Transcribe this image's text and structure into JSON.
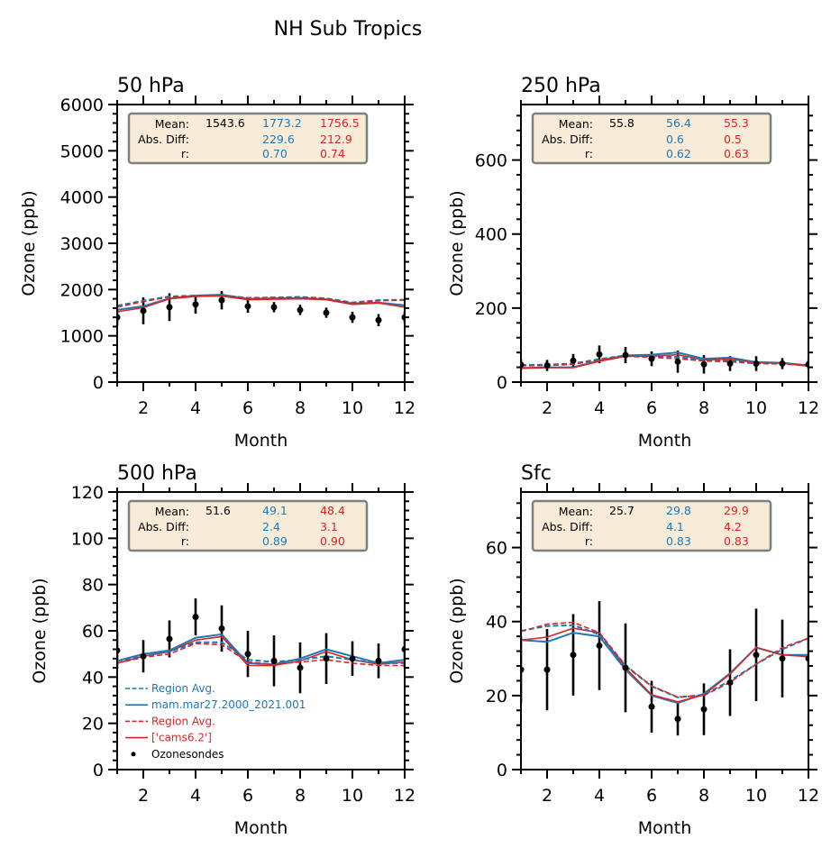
{
  "figure": {
    "suptitle": "NH Sub Tropics"
  },
  "colors": {
    "model_blue": "#1f77b4",
    "model_red": "#d62728",
    "obs": "#000000",
    "stats_box_bg": "#f8ecd8",
    "stats_box_edge": "#7f7f7f"
  },
  "chart_data": [
    {
      "type": "line",
      "title": "50 hPa",
      "xlabel": "Month",
      "ylabel": "Ozone (ppb)",
      "xlim": [
        1,
        12
      ],
      "ylim": [
        0,
        6000
      ],
      "yticks": [
        0,
        1000,
        2000,
        3000,
        4000,
        5000,
        6000
      ],
      "ytick_labels": [
        "0",
        "1000",
        "2000",
        "3000",
        "4000",
        "5000",
        "6000"
      ],
      "xticks": [
        2,
        4,
        6,
        8,
        10,
        12
      ],
      "xtick_labels": [
        "2",
        "4",
        "6",
        "8",
        "10",
        "12"
      ],
      "x": [
        1,
        2,
        3,
        4,
        5,
        6,
        7,
        8,
        9,
        10,
        11,
        12
      ],
      "series": [
        {
          "name": "Region Avg.",
          "model": "mam.mar27.2000_2021.001",
          "color": "blue",
          "style": "dashed",
          "values": [
            1650,
            1760,
            1850,
            1870,
            1880,
            1820,
            1830,
            1840,
            1810,
            1720,
            1770,
            1780
          ]
        },
        {
          "name": "mam.mar27.2000_2021.001",
          "color": "blue",
          "style": "solid",
          "values": [
            1560,
            1640,
            1810,
            1870,
            1890,
            1800,
            1810,
            1820,
            1790,
            1700,
            1720,
            1660
          ]
        },
        {
          "name": "Region Avg.",
          "model": "['cams6.2']",
          "color": "red",
          "style": "dashed",
          "values": [
            1620,
            1740,
            1840,
            1860,
            1870,
            1810,
            1830,
            1840,
            1800,
            1710,
            1760,
            1770
          ]
        },
        {
          "name": "['cams6.2']",
          "color": "red",
          "style": "solid",
          "values": [
            1520,
            1610,
            1800,
            1850,
            1860,
            1780,
            1790,
            1800,
            1780,
            1680,
            1710,
            1620
          ]
        }
      ],
      "observations": {
        "name": "Ozonesondes",
        "values": [
          1400,
          1540,
          1620,
          1680,
          1770,
          1640,
          1620,
          1560,
          1500,
          1400,
          1340,
          1400
        ],
        "err": [
          170,
          290,
          300,
          200,
          200,
          140,
          110,
          110,
          110,
          120,
          130,
          120
        ]
      },
      "stats": {
        "labels": [
          "Mean:",
          "Abs. Diff:",
          "r:"
        ],
        "obs_mean": "1543.6",
        "blue": [
          "1773.2",
          "229.6",
          "0.70"
        ],
        "red": [
          "1756.5",
          "212.9",
          "0.74"
        ]
      },
      "legend": null
    },
    {
      "type": "line",
      "title": "250 hPa",
      "xlabel": "Month",
      "ylabel": "Ozone (ppb)",
      "xlim": [
        1,
        12
      ],
      "ylim": [
        0,
        750
      ],
      "yticks": [
        0,
        200,
        400,
        600
      ],
      "ytick_labels": [
        "0",
        "200",
        "400",
        "600"
      ],
      "xticks": [
        2,
        4,
        6,
        8,
        10,
        12
      ],
      "xtick_labels": [
        "2",
        "4",
        "6",
        "8",
        "10",
        "12"
      ],
      "x": [
        1,
        2,
        3,
        4,
        5,
        6,
        7,
        8,
        9,
        10,
        11,
        12
      ],
      "series": [
        {
          "name": "Region Avg.",
          "model": "mam.mar27.2000_2021.001",
          "color": "blue",
          "style": "dashed",
          "values": [
            46,
            47,
            50,
            62,
            72,
            70,
            68,
            60,
            58,
            52,
            50,
            46
          ]
        },
        {
          "name": "mam.mar27.2000_2021.001",
          "color": "blue",
          "style": "solid",
          "values": [
            38,
            40,
            40,
            58,
            72,
            74,
            80,
            63,
            66,
            54,
            52,
            45
          ]
        },
        {
          "name": "Region Avg.",
          "model": "['cams6.2']",
          "color": "red",
          "style": "dashed",
          "values": [
            44,
            45,
            48,
            60,
            70,
            67,
            63,
            57,
            55,
            50,
            49,
            45
          ]
        },
        {
          "name": "['cams6.2']",
          "color": "red",
          "style": "solid",
          "values": [
            37,
            39,
            39,
            56,
            70,
            70,
            74,
            60,
            62,
            52,
            51,
            43
          ]
        }
      ],
      "observations": {
        "name": "Ozonesondes",
        "values": [
          47,
          45,
          58,
          75,
          73,
          63,
          55,
          48,
          50,
          50,
          50,
          48
        ],
        "err": [
          15,
          15,
          18,
          24,
          22,
          20,
          30,
          25,
          20,
          20,
          15,
          12
        ]
      },
      "stats": {
        "labels": [
          "Mean:",
          "Abs. Diff:",
          "r:"
        ],
        "obs_mean": "55.8",
        "blue": [
          "56.4",
          "0.6",
          "0.62"
        ],
        "red": [
          "55.3",
          "0.5",
          "0.63"
        ]
      },
      "legend": null
    },
    {
      "type": "line",
      "title": "500 hPa",
      "xlabel": "Month",
      "ylabel": "Ozone (ppb)",
      "xlim": [
        1,
        12
      ],
      "ylim": [
        0,
        120
      ],
      "yticks": [
        0,
        20,
        40,
        60,
        80,
        100,
        120
      ],
      "ytick_labels": [
        "0",
        "20",
        "40",
        "60",
        "80",
        "100",
        "120"
      ],
      "xticks": [
        2,
        4,
        6,
        8,
        10,
        12
      ],
      "xtick_labels": [
        "2",
        "4",
        "6",
        "8",
        "10",
        "12"
      ],
      "x": [
        1,
        2,
        3,
        4,
        5,
        6,
        7,
        8,
        9,
        10,
        11,
        12
      ],
      "series": [
        {
          "name": "Region Avg.",
          "model": "mam.mar27.2000_2021.001",
          "color": "blue",
          "style": "dashed",
          "values": [
            47,
            49,
            51,
            55,
            55,
            47.5,
            46.5,
            47.5,
            49,
            47.5,
            46,
            46
          ]
        },
        {
          "name": "mam.mar27.2000_2021.001",
          "color": "blue",
          "style": "solid",
          "values": [
            47,
            50,
            51.5,
            57,
            58.5,
            46,
            45.5,
            48,
            52,
            49,
            46,
            47.5
          ]
        },
        {
          "name": "Region Avg.",
          "model": "['cams6.2']",
          "color": "red",
          "style": "dashed",
          "values": [
            46,
            48.5,
            50,
            54.5,
            54,
            46.5,
            45.5,
            46.5,
            47.5,
            46,
            45,
            45
          ]
        },
        {
          "name": "['cams6.2']",
          "color": "red",
          "style": "solid",
          "values": [
            46,
            49,
            51,
            56,
            57.5,
            45,
            45,
            47,
            51,
            47.5,
            45.5,
            46.5
          ]
        }
      ],
      "observations": {
        "name": "Ozonesondes",
        "values": [
          51.5,
          49,
          56.5,
          66,
          61,
          50,
          47,
          44,
          48,
          48,
          47,
          52
        ],
        "err": [
          8,
          7,
          8,
          8,
          10,
          10,
          11,
          11,
          11,
          7.5,
          7.5,
          8
        ]
      },
      "stats": {
        "labels": [
          "Mean:",
          "Abs. Diff:",
          "r:"
        ],
        "obs_mean": "51.6",
        "blue": [
          "49.1",
          "2.4",
          "0.89"
        ],
        "red": [
          "48.4",
          "3.1",
          "0.90"
        ]
      },
      "legend": {
        "placement": "lower-left",
        "entries": [
          {
            "label": "Region Avg.",
            "color": "blue",
            "style": "dashed"
          },
          {
            "label": "mam.mar27.2000_2021.001",
            "color": "blue",
            "style": "solid"
          },
          {
            "label": "Region Avg.",
            "color": "red",
            "style": "dashed"
          },
          {
            "label": "['cams6.2']",
            "color": "red",
            "style": "solid"
          },
          {
            "label": "Ozonesondes",
            "color": "black",
            "style": "marker"
          }
        ]
      }
    },
    {
      "type": "line",
      "title": "Sfc",
      "xlabel": "Month",
      "ylabel": "Ozone (ppb)",
      "xlim": [
        1,
        12
      ],
      "ylim": [
        0,
        75
      ],
      "yticks": [
        0,
        20,
        40,
        60
      ],
      "ytick_labels": [
        "0",
        "20",
        "40",
        "60"
      ],
      "xticks": [
        2,
        4,
        6,
        8,
        10,
        12
      ],
      "xtick_labels": [
        "2",
        "4",
        "6",
        "8",
        "10",
        "12"
      ],
      "x": [
        1,
        2,
        3,
        4,
        5,
        6,
        7,
        8,
        9,
        10,
        11,
        12
      ],
      "series": [
        {
          "name": "Region Avg.",
          "model": "mam.mar27.2000_2021.001",
          "color": "blue",
          "style": "dashed",
          "values": [
            37.5,
            38.8,
            39,
            36.5,
            28,
            22.5,
            19.5,
            20.2,
            24,
            28.5,
            32.5,
            35.5
          ]
        },
        {
          "name": "mam.mar27.2000_2021.001",
          "color": "blue",
          "style": "solid",
          "values": [
            35,
            34.5,
            37,
            36,
            27,
            20,
            18,
            20.5,
            26,
            33,
            31,
            31
          ]
        },
        {
          "name": "Region Avg.",
          "model": "['cams6.2']",
          "color": "red",
          "style": "dashed",
          "values": [
            37.3,
            39.3,
            39.8,
            37,
            28.2,
            22.6,
            19.6,
            20,
            23.6,
            28.5,
            33,
            35.5
          ]
        },
        {
          "name": "['cams6.2']",
          "color": "red",
          "style": "solid",
          "values": [
            35,
            35.8,
            38.2,
            37,
            27.5,
            20.2,
            18.3,
            20.2,
            25.8,
            33,
            31,
            30.5
          ]
        }
      ],
      "observations": {
        "name": "Ozonesondes",
        "values": [
          27,
          27,
          31,
          33.5,
          27.5,
          17,
          13.7,
          16.3,
          23.5,
          31,
          30,
          30
        ],
        "err": [
          9,
          11,
          11,
          12,
          12,
          7,
          4.5,
          7,
          9,
          12.5,
          10.5,
          10
        ]
      },
      "stats": {
        "labels": [
          "Mean:",
          "Abs. Diff:",
          "r:"
        ],
        "obs_mean": "25.7",
        "blue": [
          "29.8",
          "4.1",
          "0.83"
        ],
        "red": [
          "29.9",
          "4.2",
          "0.83"
        ]
      },
      "legend": null
    }
  ]
}
